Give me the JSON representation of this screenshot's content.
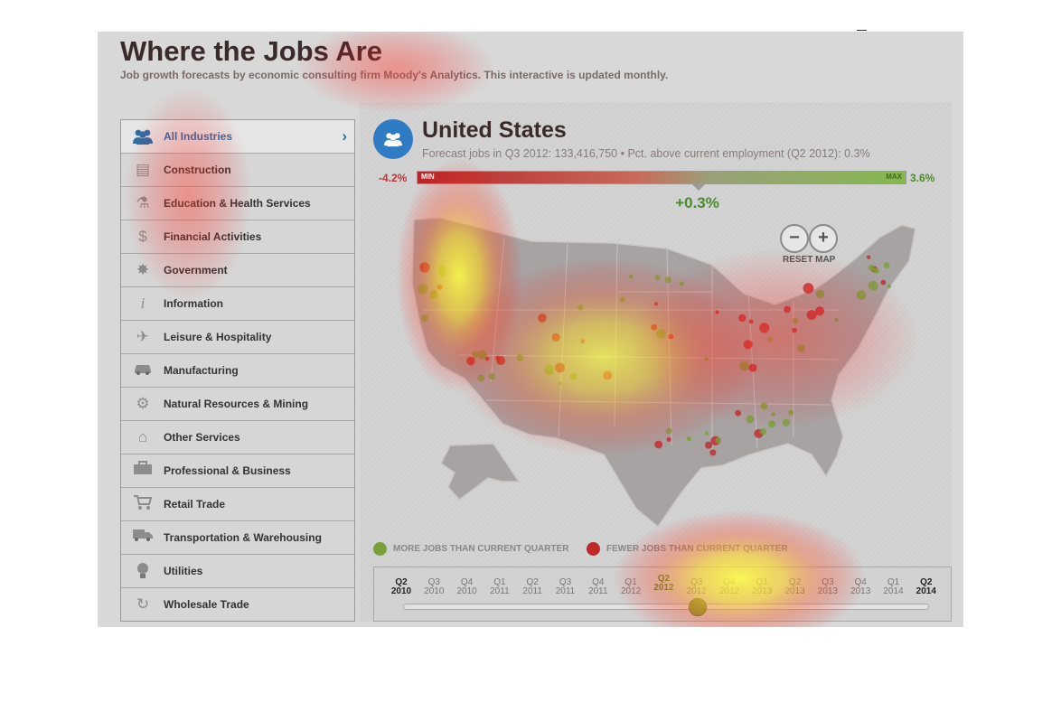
{
  "header": {
    "title": "Where the Jobs Are",
    "subtitle": "Job growth forecasts by economic consulting firm Moody's Analytics. This interactive is updated monthly."
  },
  "sidebar": {
    "items": [
      {
        "label": "All Industries",
        "icon": "people-icon",
        "active": true
      },
      {
        "label": "Construction",
        "icon": "construction-icon"
      },
      {
        "label": "Education & Health Services",
        "icon": "flask-icon"
      },
      {
        "label": "Financial Activities",
        "icon": "dollar-icon"
      },
      {
        "label": "Government",
        "icon": "seal-icon"
      },
      {
        "label": "Information",
        "icon": "info-icon"
      },
      {
        "label": "Leisure & Hospitality",
        "icon": "airplane-icon"
      },
      {
        "label": "Manufacturing",
        "icon": "car-icon"
      },
      {
        "label": "Natural Resources & Mining",
        "icon": "gear-icon"
      },
      {
        "label": "Other Services",
        "icon": "house-icon"
      },
      {
        "label": "Professional & Business",
        "icon": "briefcase-icon"
      },
      {
        "label": "Retail Trade",
        "icon": "cart-icon"
      },
      {
        "label": "Transportation & Warehousing",
        "icon": "truck-icon"
      },
      {
        "label": "Utilities",
        "icon": "lightbulb-icon"
      },
      {
        "label": "Wholesale Trade",
        "icon": "recycle-icon"
      }
    ]
  },
  "region": {
    "name": "United States",
    "stats": "Forecast jobs in Q3 2012: 133,416,750 • Pct. above current employment (Q2 2012): 0.3%"
  },
  "scale": {
    "min_value": "-4.2%",
    "max_value": "3.6%",
    "min_tag": "MIN",
    "max_tag": "MAX",
    "current_value": "+0.3%",
    "current_fraction": 0.576,
    "neg_color": "#b5262a",
    "pos_color": "#86b84e"
  },
  "map_controls": {
    "zoom_out": "−",
    "zoom_in": "+",
    "reset_label": "RESET MAP"
  },
  "legend": {
    "more_label": "MORE JOBS THAN CURRENT QUARTER",
    "fewer_label": "FEWER JOBS THAN CURRENT QUARTER",
    "more_color": "#7aa03a",
    "fewer_color": "#c0282a"
  },
  "timeline": {
    "quarters": [
      {
        "q": "Q2",
        "y": "2010"
      },
      {
        "q": "Q3",
        "y": "2010"
      },
      {
        "q": "Q4",
        "y": "2010"
      },
      {
        "q": "Q1",
        "y": "2011"
      },
      {
        "q": "Q2",
        "y": "2011"
      },
      {
        "q": "Q3",
        "y": "2011"
      },
      {
        "q": "Q4",
        "y": "2011"
      },
      {
        "q": "Q1",
        "y": "2012"
      },
      {
        "q": "Q2",
        "y": "2012"
      },
      {
        "q": "Q3",
        "y": "2012"
      },
      {
        "q": "Q4",
        "y": "2012"
      },
      {
        "q": "Q1",
        "y": "2013"
      },
      {
        "q": "Q2",
        "y": "2013"
      },
      {
        "q": "Q3",
        "y": "2013"
      },
      {
        "q": "Q4",
        "y": "2013"
      },
      {
        "q": "Q1",
        "y": "2014"
      },
      {
        "q": "Q2",
        "y": "2014"
      }
    ],
    "selected_index": 9
  }
}
